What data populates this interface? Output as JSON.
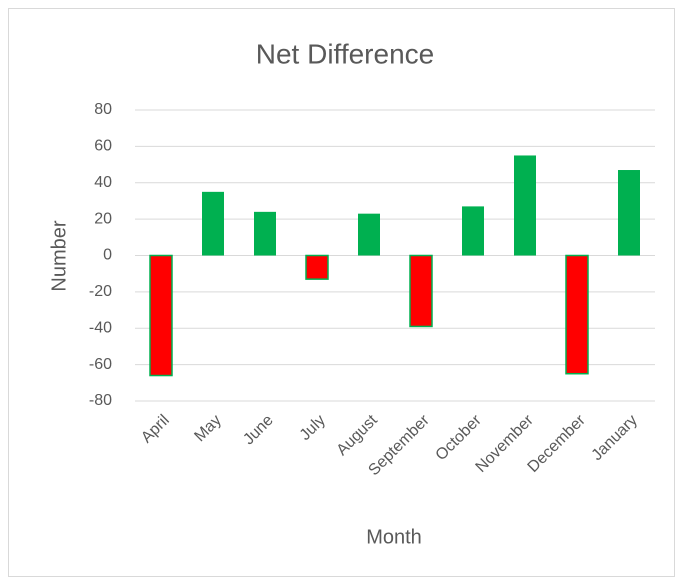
{
  "chart_data": {
    "type": "bar",
    "title": "Net Difference",
    "x_label": "Month",
    "y_label": "Number",
    "categories": [
      "April",
      "May",
      "June",
      "July",
      "August",
      "September",
      "October",
      "November",
      "December",
      "January"
    ],
    "values": [
      -66,
      35,
      24,
      -13,
      23,
      -39,
      27,
      55,
      -65,
      47
    ],
    "color": "#00b050",
    "negative_color": "#ff0000",
    "ylim": [
      -80,
      80
    ],
    "yticks": [
      -80,
      -60,
      -40,
      -20,
      0,
      20,
      40,
      60,
      80
    ],
    "grid": true
  }
}
